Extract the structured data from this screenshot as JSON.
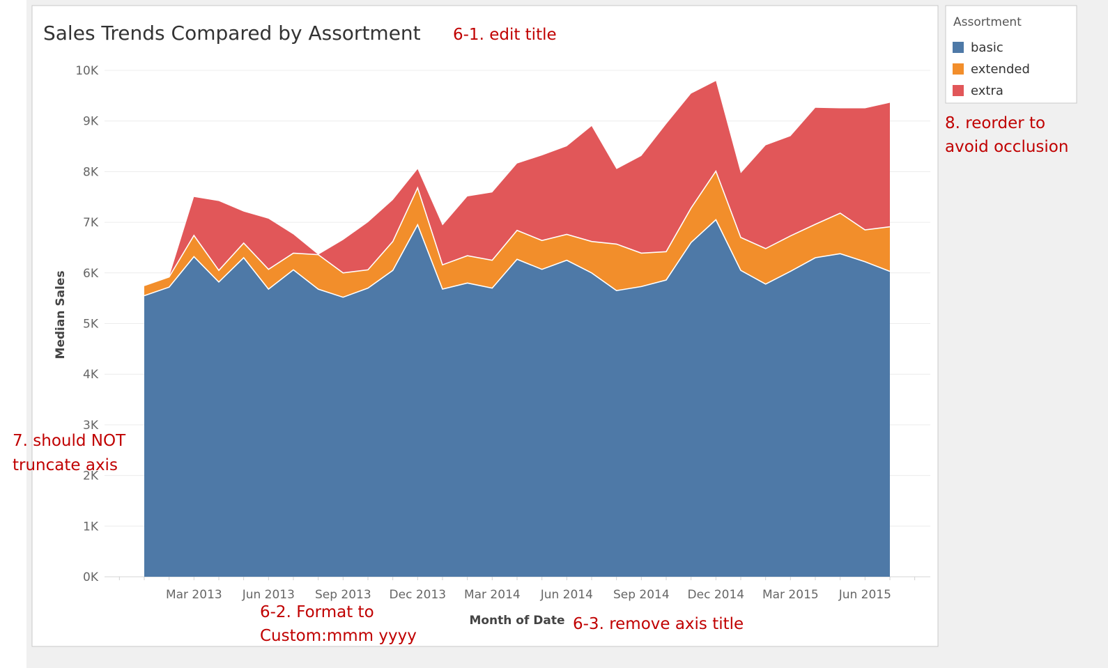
{
  "colors": {
    "basic": "#4e79a7",
    "extended": "#f28e2b",
    "extra": "#e15759",
    "note": "#c00000"
  },
  "chart_data": {
    "type": "area",
    "stacked": true,
    "title": "Sales Trends Compared by Assortment",
    "xlabel": "Month of Date",
    "ylabel": "Median Sales",
    "ylim": [
      0,
      10000
    ],
    "grid": true,
    "legend_position": "right",
    "legend_title": "Assortment",
    "x": [
      "2013-01",
      "2013-02",
      "2013-03",
      "2013-04",
      "2013-05",
      "2013-06",
      "2013-07",
      "2013-08",
      "2013-09",
      "2013-10",
      "2013-11",
      "2013-12",
      "2014-01",
      "2014-02",
      "2014-03",
      "2014-04",
      "2014-05",
      "2014-06",
      "2014-07",
      "2014-08",
      "2014-09",
      "2014-10",
      "2014-11",
      "2014-12",
      "2015-01",
      "2015-02",
      "2015-03",
      "2015-04",
      "2015-05",
      "2015-06",
      "2015-07"
    ],
    "x_tick_labels": [
      "Mar 2013",
      "Jun 2013",
      "Sep 2013",
      "Dec 2013",
      "Mar 2014",
      "Jun 2014",
      "Sep 2014",
      "Dec 2014",
      "Mar 2015",
      "Jun 2015"
    ],
    "y_tick_labels": [
      "0K",
      "1K",
      "2K",
      "3K",
      "4K",
      "5K",
      "6K",
      "7K",
      "8K",
      "9K",
      "10K"
    ],
    "series": [
      {
        "name": "basic",
        "values": [
          5550,
          5720,
          6320,
          5820,
          6300,
          5680,
          6060,
          5680,
          5520,
          5700,
          6050,
          6950,
          5680,
          5800,
          5700,
          6270,
          6070,
          6250,
          6000,
          5650,
          5730,
          5860,
          6600,
          7050,
          6050,
          5780,
          6030,
          6300,
          6380,
          6220,
          6030
        ]
      },
      {
        "name": "extended",
        "values": [
          200,
          200,
          420,
          230,
          290,
          390,
          330,
          680,
          480,
          360,
          570,
          730,
          480,
          540,
          550,
          570,
          570,
          510,
          620,
          920,
          660,
          560,
          680,
          960,
          650,
          700,
          700,
          660,
          800,
          630,
          880
        ]
      },
      {
        "name": "extra",
        "values": [
          0,
          0,
          760,
          1370,
          620,
          1000,
          370,
          0,
          650,
          940,
          820,
          370,
          780,
          1170,
          1340,
          1320,
          1680,
          1740,
          2280,
          1480,
          1920,
          2520,
          2260,
          1780,
          1270,
          2040,
          1970,
          2300,
          2070,
          2400,
          2450
        ]
      }
    ]
  },
  "annotations": {
    "edit_title": "6-1. edit title",
    "format_line1": "6-2. Format to",
    "format_line2": "Custom:mmm yyyy",
    "remove_axis_title": "6-3. remove axis title",
    "truncate_line1": "7. should NOT",
    "truncate_line2": "truncate axis",
    "reorder_line1": "8. reorder to",
    "reorder_line2": "avoid occlusion"
  }
}
